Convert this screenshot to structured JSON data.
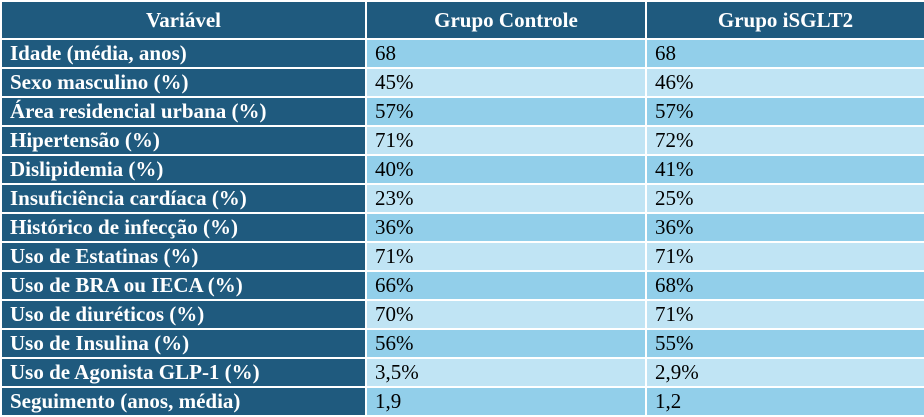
{
  "table": {
    "header": [
      "Variável",
      "Grupo Controle",
      "Grupo iSGLT2"
    ],
    "rows": [
      [
        "Idade (média, anos)",
        "68",
        "68"
      ],
      [
        "Sexo masculino (%)",
        "45%",
        "46%"
      ],
      [
        "Área residencial urbana (%)",
        "57%",
        "57%"
      ],
      [
        "Hipertensão (%)",
        "71%",
        "72%"
      ],
      [
        "Dislipidemia (%)",
        "40%",
        "41%"
      ],
      [
        "Insuficiência cardíaca (%)",
        "23%",
        "25%"
      ],
      [
        "Histórico de infecção (%)",
        "36%",
        "36%"
      ],
      [
        "Uso de Estatinas (%)",
        "71%",
        "71%"
      ],
      [
        "Uso de BRA ou IECA (%)",
        "66%",
        "68%"
      ],
      [
        "Uso de diuréticos (%)",
        "70%",
        "71%"
      ],
      [
        "Uso de Insulina (%)",
        "56%",
        "55%"
      ],
      [
        "Uso de Agonista GLP-1 (%)",
        "3,5%",
        "2,9%"
      ],
      [
        "Seguimento (anos, média)",
        "1,9",
        "1,2"
      ]
    ]
  }
}
